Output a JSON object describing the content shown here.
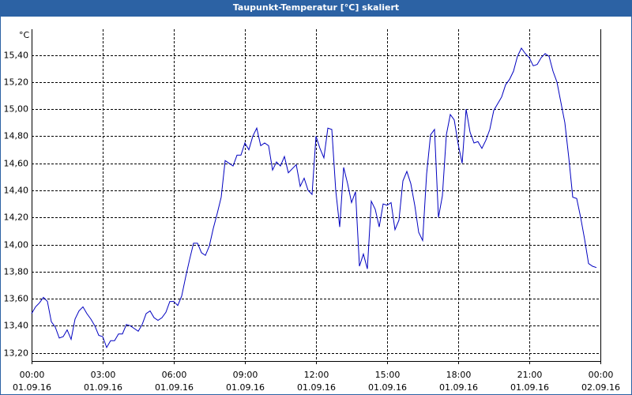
{
  "chart_data": {
    "type": "line",
    "title": "Taupunkt-Temperatur [°C] skaliert",
    "y_unit": "°C",
    "xlim": [
      0,
      24
    ],
    "xticks": [
      {
        "value": 0,
        "label": "00:00"
      },
      {
        "value": 3,
        "label": "03:00"
      },
      {
        "value": 6,
        "label": "06:00"
      },
      {
        "value": 9,
        "label": "09:00"
      },
      {
        "value": 12,
        "label": "12:00"
      },
      {
        "value": 15,
        "label": "15:00"
      },
      {
        "value": 18,
        "label": "18:00"
      },
      {
        "value": 21,
        "label": "21:00"
      },
      {
        "value": 24,
        "label": "00:00"
      }
    ],
    "xtick_dates": [
      "01.09.16",
      "01.09.16",
      "01.09.16",
      "01.09.16",
      "01.09.16",
      "01.09.16",
      "01.09.16",
      "01.09.16",
      "02.09.16"
    ],
    "ylim": [
      13.14,
      15.59
    ],
    "yticks": [
      {
        "value": 13.2,
        "label": "13,20"
      },
      {
        "value": 13.4,
        "label": "13,40"
      },
      {
        "value": 13.6,
        "label": "13,60"
      },
      {
        "value": 13.8,
        "label": "13,80"
      },
      {
        "value": 14.0,
        "label": "14,00"
      },
      {
        "value": 14.2,
        "label": "14,20"
      },
      {
        "value": 14.4,
        "label": "14,40"
      },
      {
        "value": 14.6,
        "label": "14,60"
      },
      {
        "value": 14.8,
        "label": "14,80"
      },
      {
        "value": 15.0,
        "label": "15,00"
      },
      {
        "value": 15.2,
        "label": "15,20"
      },
      {
        "value": 15.4,
        "label": "15,40"
      }
    ],
    "grid": true,
    "x": [
      0,
      0.167,
      0.333,
      0.5,
      0.667,
      0.833,
      1,
      1.167,
      1.333,
      1.5,
      1.667,
      1.833,
      2,
      2.167,
      2.333,
      2.5,
      2.667,
      2.833,
      3,
      3.167,
      3.333,
      3.5,
      3.667,
      3.833,
      4,
      4.167,
      4.333,
      4.5,
      4.667,
      4.833,
      5,
      5.167,
      5.333,
      5.5,
      5.667,
      5.833,
      6,
      6.167,
      6.333,
      6.5,
      6.667,
      6.833,
      7,
      7.167,
      7.333,
      7.5,
      7.667,
      7.833,
      8,
      8.167,
      8.333,
      8.5,
      8.667,
      8.833,
      9,
      9.167,
      9.333,
      9.5,
      9.667,
      9.833,
      10,
      10.167,
      10.333,
      10.5,
      10.667,
      10.833,
      11,
      11.167,
      11.333,
      11.5,
      11.667,
      11.833,
      12,
      12.167,
      12.333,
      12.5,
      12.667,
      12.833,
      13,
      13.167,
      13.333,
      13.5,
      13.667,
      13.833,
      14,
      14.167,
      14.333,
      14.5,
      14.667,
      14.833,
      15,
      15.167,
      15.333,
      15.5,
      15.667,
      15.833,
      16,
      16.167,
      16.333,
      16.5,
      16.667,
      16.833,
      17,
      17.167,
      17.333,
      17.5,
      17.667,
      17.833,
      18,
      18.167,
      18.333,
      18.5,
      18.667,
      18.833,
      19,
      19.167,
      19.333,
      19.5,
      19.667,
      19.833,
      20,
      20.167,
      20.333,
      20.5,
      20.667,
      20.833,
      21,
      21.167,
      21.333,
      21.5,
      21.667,
      21.833,
      22,
      22.167,
      22.333,
      22.5,
      22.667,
      22.833,
      23,
      23.167,
      23.333,
      23.5,
      23.667,
      23.833
    ],
    "series": [
      {
        "name": "Taupunkt",
        "color": "#0000c0",
        "values": [
          13.49,
          13.54,
          13.57,
          13.61,
          13.58,
          13.43,
          13.39,
          13.31,
          13.32,
          13.37,
          13.3,
          13.45,
          13.51,
          13.54,
          13.49,
          13.45,
          13.4,
          13.33,
          13.32,
          13.24,
          13.29,
          13.29,
          13.34,
          13.34,
          13.41,
          13.4,
          13.38,
          13.36,
          13.41,
          13.49,
          13.51,
          13.46,
          13.44,
          13.46,
          13.5,
          13.58,
          13.58,
          13.55,
          13.62,
          13.76,
          13.89,
          14.01,
          14.01,
          13.94,
          13.92,
          13.99,
          14.12,
          14.23,
          14.35,
          14.62,
          14.6,
          14.58,
          14.66,
          14.66,
          14.75,
          14.7,
          14.8,
          14.86,
          14.73,
          14.75,
          14.73,
          14.55,
          14.61,
          14.58,
          14.65,
          14.53,
          14.56,
          14.59,
          14.43,
          14.49,
          14.4,
          14.37,
          14.8,
          14.71,
          14.64,
          14.86,
          14.85,
          14.4,
          14.13,
          14.57,
          14.45,
          14.31,
          14.39,
          13.84,
          13.93,
          13.82,
          14.32,
          14.26,
          14.13,
          14.3,
          14.29,
          14.31,
          14.11,
          14.18,
          14.47,
          14.54,
          14.45,
          14.29,
          14.09,
          14.03,
          14.52,
          14.81,
          14.85,
          14.2,
          14.36,
          14.81,
          14.96,
          14.92,
          14.74,
          14.6,
          15.0,
          14.83,
          14.75,
          14.76,
          14.71,
          14.77,
          14.85,
          14.99,
          15.04,
          15.09,
          15.18,
          15.22,
          15.28,
          15.39,
          15.45,
          15.41,
          15.38,
          15.32,
          15.33,
          15.38,
          15.41,
          15.39,
          15.28,
          15.2,
          15.05,
          14.9,
          14.64,
          14.35,
          14.34,
          14.2,
          14.04,
          13.86,
          13.84,
          13.83
        ]
      }
    ]
  }
}
